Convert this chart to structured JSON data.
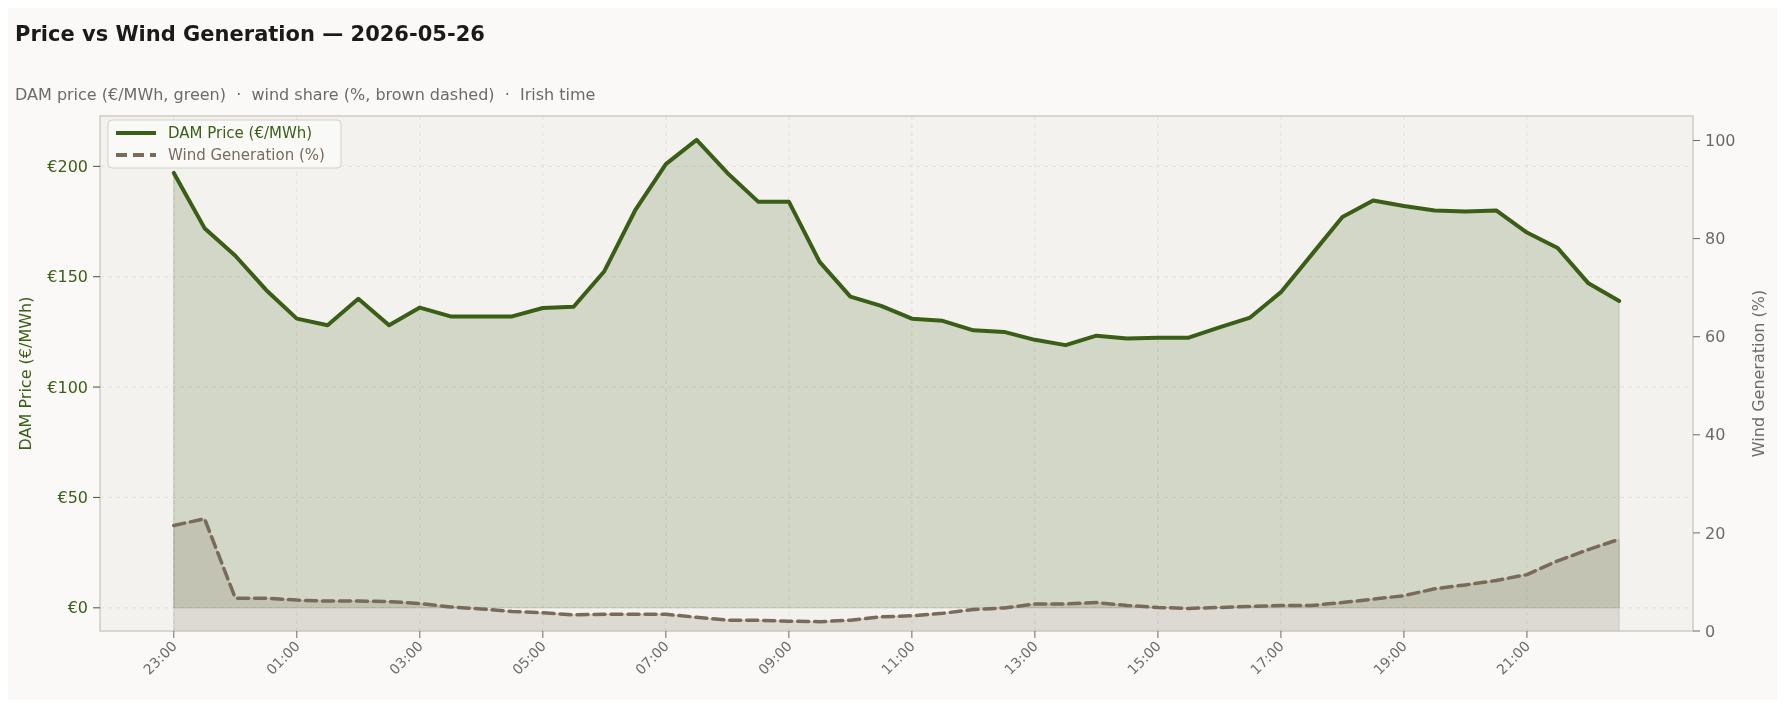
{
  "chart_data": {
    "type": "area",
    "title": "Price vs Wind Generation — 2026-05-26",
    "subtitle": "DAM price (€/MWh, green)  ·  wind share (%, brown dashed)  ·  Irish time",
    "ylabel": "DAM Price (€/MWh)",
    "y2label": "Wind Generation (%)",
    "x": [
      "2026-05-25T23:00",
      "2026-05-25T23:30",
      "2026-05-26T00:00",
      "2026-05-26T00:30",
      "2026-05-26T01:00",
      "2026-05-26T01:30",
      "2026-05-26T02:00",
      "2026-05-26T02:30",
      "2026-05-26T03:00",
      "2026-05-26T03:30",
      "2026-05-26T04:00",
      "2026-05-26T04:30",
      "2026-05-26T05:00",
      "2026-05-26T05:30",
      "2026-05-26T06:00",
      "2026-05-26T06:30",
      "2026-05-26T07:00",
      "2026-05-26T07:30",
      "2026-05-26T08:00",
      "2026-05-26T08:30",
      "2026-05-26T09:00",
      "2026-05-26T09:30",
      "2026-05-26T10:00",
      "2026-05-26T10:30",
      "2026-05-26T11:00",
      "2026-05-26T11:30",
      "2026-05-26T12:00",
      "2026-05-26T12:30",
      "2026-05-26T13:00",
      "2026-05-26T13:30",
      "2026-05-26T14:00",
      "2026-05-26T14:30",
      "2026-05-26T15:00",
      "2026-05-26T15:30",
      "2026-05-26T16:00",
      "2026-05-26T16:30",
      "2026-05-26T17:00",
      "2026-05-26T17:30",
      "2026-05-26T18:00",
      "2026-05-26T18:30",
      "2026-05-26T19:00",
      "2026-05-26T19:30",
      "2026-05-26T20:00",
      "2026-05-26T20:30",
      "2026-05-26T21:00",
      "2026-05-26T21:30",
      "2026-05-26T22:00",
      "2026-05-26T22:30"
    ],
    "series": [
      {
        "name": "DAM Price (€/MWh)",
        "color": "#3b5e17",
        "line_style": "solid",
        "values": [
          197,
          172,
          159.5,
          144,
          131,
          128,
          140,
          128,
          136,
          132,
          132,
          132,
          135.8,
          136.4,
          152.5,
          180,
          201,
          212,
          197,
          184,
          184,
          156.7,
          141,
          136.8,
          131,
          130,
          125.7,
          125,
          121.4,
          119,
          123.3,
          122,
          122.4,
          122.4,
          127,
          131.5,
          143,
          160,
          177,
          184.5,
          182,
          180,
          179.5,
          180,
          170,
          163,
          147,
          139
        ]
      },
      {
        "name": "Wind Generation (%)",
        "color": "#7a6a5a",
        "line_style": "dashed",
        "axis": "y2",
        "values": [
          21.5,
          22.9,
          6.7,
          6.7,
          6.3,
          6.1,
          6.1,
          6,
          5.6,
          4.9,
          4.5,
          4,
          3.7,
          3.3,
          3.4,
          3.4,
          3.4,
          2.8,
          2.2,
          2.2,
          2,
          1.9,
          2.2,
          2.9,
          3.1,
          3.6,
          4.4,
          4.7,
          5.5,
          5.5,
          5.8,
          5.2,
          4.8,
          4.6,
          4.8,
          5,
          5.2,
          5.2,
          5.8,
          6.5,
          7.2,
          8.6,
          9.4,
          10.3,
          11.5,
          14.3,
          16.6,
          18.7
        ]
      }
    ],
    "xlim": [
      "2026-05-25T21:48",
      "2026-05-26T23:42"
    ],
    "xticks": [
      {
        "value": "2026-05-25T23:00",
        "label": "23:00"
      },
      {
        "value": "2026-05-26T01:00",
        "label": "01:00"
      },
      {
        "value": "2026-05-26T03:00",
        "label": "03:00"
      },
      {
        "value": "2026-05-26T05:00",
        "label": "05:00"
      },
      {
        "value": "2026-05-26T07:00",
        "label": "07:00"
      },
      {
        "value": "2026-05-26T09:00",
        "label": "09:00"
      },
      {
        "value": "2026-05-26T11:00",
        "label": "11:00"
      },
      {
        "value": "2026-05-26T13:00",
        "label": "13:00"
      },
      {
        "value": "2026-05-26T15:00",
        "label": "15:00"
      },
      {
        "value": "2026-05-26T17:00",
        "label": "17:00"
      },
      {
        "value": "2026-05-26T19:00",
        "label": "19:00"
      },
      {
        "value": "2026-05-26T21:00",
        "label": "21:00"
      }
    ],
    "ylim": [
      -10.5,
      222.8
    ],
    "yticks": [
      {
        "value": 0,
        "label": "€0"
      },
      {
        "value": 50,
        "label": "€50"
      },
      {
        "value": 100,
        "label": "€100"
      },
      {
        "value": 150,
        "label": "€150"
      },
      {
        "value": 200,
        "label": "€200"
      }
    ],
    "y2lim": [
      0,
      105
    ],
    "y2ticks": [
      0,
      20,
      40,
      60,
      80,
      100
    ],
    "grid": true,
    "legend": "top left"
  }
}
